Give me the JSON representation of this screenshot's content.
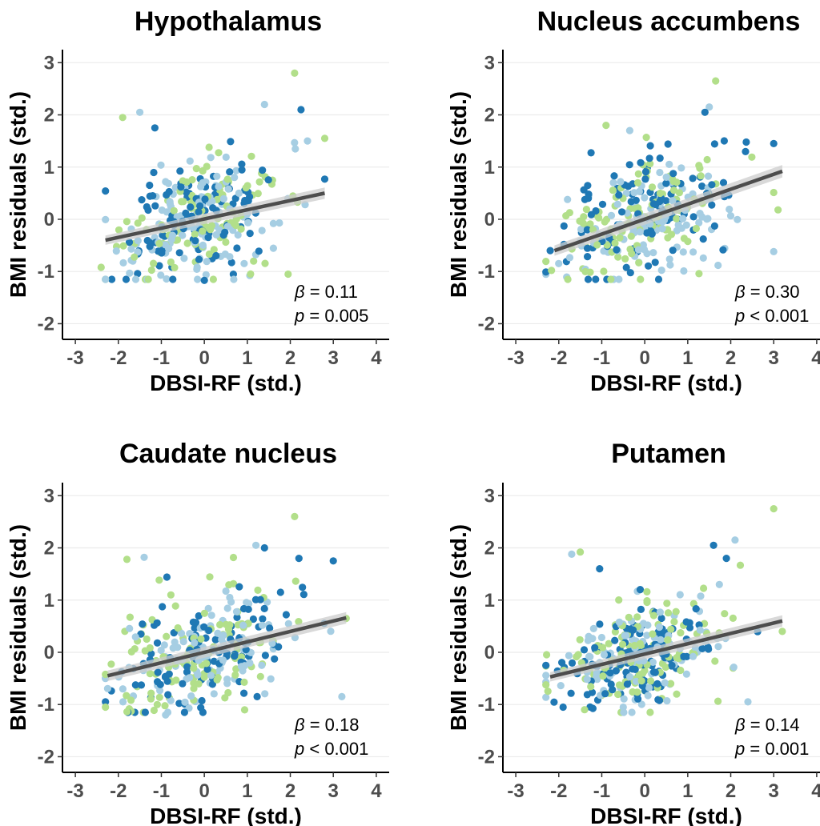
{
  "colors": {
    "green": "#b2df8a",
    "light_blue": "#a6cee3",
    "dark_blue": "#1f78b4",
    "fit_line": "#4d4d4d",
    "ci_band": "#cccccc"
  },
  "chart_data": [
    {
      "type": "scatter",
      "title": "Hypothalamus",
      "xlabel": "DBSI-RF (std.)",
      "ylabel": "BMI residuals (std.)",
      "xlim": [
        -3.3,
        4.3
      ],
      "ylim": [
        -2.3,
        3.25
      ],
      "xticks": [
        -3,
        -2,
        -1,
        0,
        1,
        2,
        3,
        4
      ],
      "yticks": [
        -2,
        -1,
        0,
        1,
        2,
        3
      ],
      "grid": "horizontal",
      "annotation": {
        "beta_symbol": "β",
        "beta_text": " = 0.11",
        "p_symbol": "p",
        "p_text": " = 0.005"
      },
      "fit": {
        "x": [
          -2.3,
          2.8
        ],
        "y": [
          -0.4,
          0.5
        ],
        "ci_halfwidth": [
          0.09,
          0.11
        ]
      },
      "highlight_points": [
        [
          2.1,
          2.8
        ],
        [
          1.4,
          2.2
        ],
        [
          2.25,
          2.1
        ],
        [
          -1.9,
          1.95
        ],
        [
          -1.5,
          2.05
        ],
        [
          -1.15,
          1.75
        ],
        [
          2.8,
          1.55
        ],
        [
          2.4,
          1.5
        ],
        [
          2.8,
          0.77
        ],
        [
          -2.4,
          -0.92
        ],
        [
          -2.3,
          -1.15
        ],
        [
          0.0,
          -1.17
        ],
        [
          1.95,
          -1.05
        ]
      ],
      "cloud": {
        "n": 330,
        "cx": -0.1,
        "cy": -0.05,
        "sx": 0.95,
        "sy": 0.55,
        "seed": 11
      }
    },
    {
      "type": "scatter",
      "title": "Nucleus accumbens",
      "xlabel": "DBSI-RF (std.)",
      "ylabel": "BMI residuals (std.)",
      "xlim": [
        -3.3,
        4.3
      ],
      "ylim": [
        -2.3,
        3.25
      ],
      "xticks": [
        -3,
        -2,
        -1,
        0,
        1,
        2,
        3,
        4
      ],
      "yticks": [
        -2,
        -1,
        0,
        1,
        2,
        3
      ],
      "grid": "horizontal",
      "annotation": {
        "beta_symbol": "β",
        "beta_text": " = 0.30",
        "p_symbol": "p",
        "p_text": " < 0.001"
      },
      "fit": {
        "x": [
          -2.1,
          3.2
        ],
        "y": [
          -0.6,
          0.92
        ],
        "ci_halfwidth": [
          0.1,
          0.12
        ]
      },
      "highlight_points": [
        [
          1.65,
          2.65
        ],
        [
          1.5,
          2.15
        ],
        [
          1.4,
          2.05
        ],
        [
          -0.9,
          1.8
        ],
        [
          -0.35,
          1.7
        ],
        [
          3.0,
          1.45
        ],
        [
          3.1,
          0.18
        ],
        [
          3.0,
          -0.62
        ],
        [
          -2.2,
          -0.6
        ],
        [
          -0.1,
          -1.15
        ],
        [
          -0.6,
          -1.15
        ]
      ],
      "cloud": {
        "n": 330,
        "cx": 0.0,
        "cy": 0.0,
        "sx": 0.95,
        "sy": 0.55,
        "seed": 29
      }
    },
    {
      "type": "scatter",
      "title": "Caudate nucleus",
      "xlabel": "DBSI-RF (std.)",
      "ylabel": "BMI residuals (std.)",
      "xlim": [
        -3.3,
        4.3
      ],
      "ylim": [
        -2.3,
        3.25
      ],
      "xticks": [
        -3,
        -2,
        -1,
        0,
        1,
        2,
        3,
        4
      ],
      "yticks": [
        -2,
        -1,
        0,
        1,
        2,
        3
      ],
      "grid": "horizontal",
      "annotation": {
        "beta_symbol": "β",
        "beta_text": " = 0.18",
        "p_symbol": "p",
        "p_text": " < 0.001"
      },
      "fit": {
        "x": [
          -2.25,
          3.3
        ],
        "y": [
          -0.45,
          0.66
        ],
        "ci_halfwidth": [
          0.1,
          0.11
        ]
      },
      "highlight_points": [
        [
          2.1,
          2.6
        ],
        [
          1.2,
          2.05
        ],
        [
          1.4,
          2.0
        ],
        [
          -1.8,
          1.78
        ],
        [
          -1.4,
          1.82
        ],
        [
          3.0,
          1.75
        ],
        [
          3.3,
          0.65
        ],
        [
          3.2,
          -0.85
        ],
        [
          -2.3,
          -0.95
        ],
        [
          -2.3,
          -1.05
        ],
        [
          -0.9,
          -1.2
        ],
        [
          2.2,
          1.8
        ]
      ],
      "cloud": {
        "n": 330,
        "cx": -0.1,
        "cy": -0.05,
        "sx": 0.95,
        "sy": 0.55,
        "seed": 47
      }
    },
    {
      "type": "scatter",
      "title": "Putamen",
      "xlabel": "DBSI-RF (std.)",
      "ylabel": "BMI residuals (std.)",
      "xlim": [
        -3.3,
        4.3
      ],
      "ylim": [
        -2.3,
        3.25
      ],
      "xticks": [
        -3,
        -2,
        -1,
        0,
        1,
        2,
        3,
        4
      ],
      "yticks": [
        -2,
        -1,
        0,
        1,
        2,
        3
      ],
      "grid": "horizontal",
      "annotation": {
        "beta_symbol": "β",
        "beta_text": " = 0.14",
        "p_symbol": "p",
        "p_text": " = 0.001"
      },
      "fit": {
        "x": [
          -2.2,
          3.2
        ],
        "y": [
          -0.47,
          0.6
        ],
        "ci_halfwidth": [
          0.09,
          0.11
        ]
      },
      "highlight_points": [
        [
          3.0,
          2.75
        ],
        [
          2.1,
          2.15
        ],
        [
          1.6,
          2.05
        ],
        [
          -1.5,
          1.92
        ],
        [
          -1.7,
          1.88
        ],
        [
          -1.05,
          1.6
        ],
        [
          3.2,
          0.4
        ],
        [
          2.4,
          -0.95
        ],
        [
          -2.3,
          -0.25
        ],
        [
          -1.4,
          -1.1
        ],
        [
          -0.5,
          -1.05
        ],
        [
          -1.9,
          -1.05
        ]
      ],
      "cloud": {
        "n": 330,
        "cx": -0.1,
        "cy": 0.0,
        "sx": 0.95,
        "sy": 0.5,
        "seed": 83
      }
    }
  ]
}
